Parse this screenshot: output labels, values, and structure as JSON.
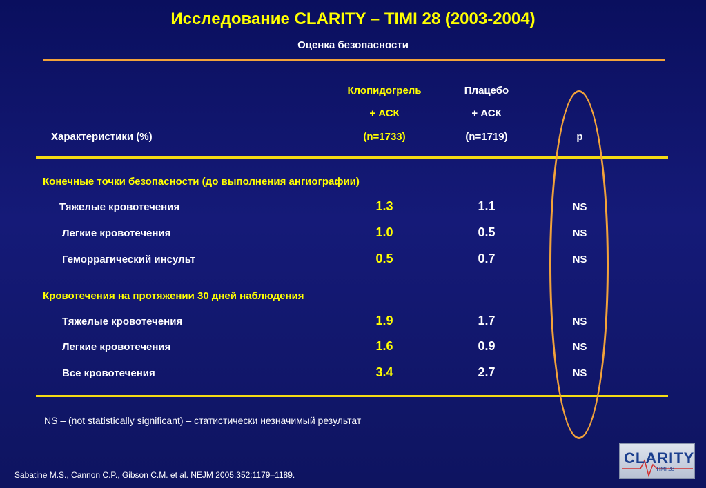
{
  "title": "Исследование CLARITY – TIMI 28 (2003-2004)",
  "subtitle": "Оценка безопасности",
  "header": {
    "characteristics": "Характеристики (%)",
    "col1": [
      "Клопидогрель",
      "+ АСК",
      "(n=1733)"
    ],
    "col2": [
      "Плацебо",
      "+ АСК",
      "(n=1719)"
    ],
    "p": "p"
  },
  "sections": [
    {
      "title": "Конечные точки безопасности (до выполнения ангиографии)",
      "rows": [
        {
          "label": "Тяжелые кровотечения",
          "clopidogrel": "1.3",
          "placebo": "1.1",
          "p": "NS"
        },
        {
          "label": "Легкие кровотечения",
          "clopidogrel": "1.0",
          "placebo": "0.5",
          "p": "NS"
        },
        {
          "label": "Геморрагический инсульт",
          "clopidogrel": "0.5",
          "placebo": "0.7",
          "p": "NS"
        }
      ]
    },
    {
      "title": "Кровотечения на протяжении 30 дней наблюдения",
      "rows": [
        {
          "label": "Тяжелые кровотечения",
          "clopidogrel": "1.9",
          "placebo": "1.7",
          "p": "NS"
        },
        {
          "label": "Легкие кровотечения",
          "clopidogrel": "1.6",
          "placebo": "0.9",
          "p": "NS"
        },
        {
          "label": "Все кровотечения",
          "clopidogrel": "3.4",
          "placebo": "2.7",
          "p": "NS"
        }
      ]
    }
  ],
  "footnote": "NS – (not statistically significant) – статистически незначимый результат",
  "citation": "Sabatine M.S., Cannon C.P., Gibson C.M. et al. NEJM 2005;352:1179–1189.",
  "logo": {
    "brand": "CLARITY",
    "sub": "TIMI 28"
  },
  "colors": {
    "background": "#10166a",
    "accent_yellow": "#ffff00",
    "accent_orange": "#f2a23a"
  }
}
